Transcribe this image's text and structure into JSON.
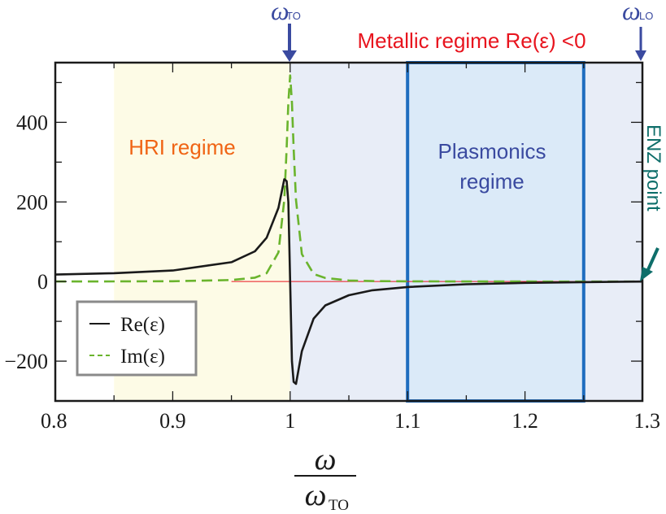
{
  "chart_data": {
    "type": "line",
    "title": "",
    "xlabel": "ω / ω_TO",
    "ylabel": "",
    "xlim": [
      0.8,
      1.3
    ],
    "ylim": [
      -300,
      550
    ],
    "grid": false,
    "legend_position": "lower-left (inside)",
    "x_ticks": [
      "0.8",
      "0.9",
      "1",
      "1.1",
      "1.2",
      "1.3"
    ],
    "y_ticks": [
      "-200",
      "0",
      "200",
      "400"
    ],
    "series": [
      {
        "name": "Re(ε)",
        "style": "solid",
        "color": "#1a1a1a",
        "x": [
          0.8,
          0.85,
          0.9,
          0.95,
          0.97,
          0.98,
          0.99,
          0.995,
          0.997,
          0.9985,
          1.0,
          1.0015,
          1.003,
          1.005,
          1.01,
          1.02,
          1.03,
          1.05,
          1.07,
          1.1,
          1.15,
          1.2,
          1.25,
          1.3
        ],
        "values": [
          17.5,
          20.9,
          27.8,
          48.5,
          76,
          110,
          185,
          257,
          252,
          200,
          0,
          -200,
          -252,
          -257,
          -175,
          -93,
          -60,
          -34.4,
          -22,
          -13.7,
          -6.8,
          -3.4,
          -1.4,
          0
        ]
      },
      {
        "name": "Im(ε)",
        "style": "dashed",
        "color": "#6ab42d",
        "x": [
          0.8,
          0.85,
          0.9,
          0.95,
          0.97,
          0.98,
          0.99,
          0.995,
          0.997,
          0.9985,
          1.0,
          1.0015,
          1.003,
          1.005,
          1.01,
          1.02,
          1.03,
          1.05,
          1.07,
          1.1,
          1.15,
          1.2,
          1.25,
          1.3
        ],
        "values": [
          0.1,
          0.3,
          0.7,
          3.8,
          9.8,
          21,
          73,
          205,
          335,
          450,
          518,
          450,
          335,
          205,
          69,
          19,
          9,
          2.7,
          1.2,
          0.6,
          0.2,
          0.1,
          0.05,
          0
        ]
      }
    ],
    "regions": [
      {
        "name": "HRI regime",
        "x_start": 0.85,
        "x_end": 1.0,
        "fill": "#fdfbe6",
        "label_color": "#f06414"
      },
      {
        "name": "Metallic regime",
        "x_start": 1.0,
        "x_end": 1.3,
        "fill": "#e8edf7"
      },
      {
        "name": "Plasmonics regime",
        "x_start": 1.1,
        "x_end": 1.25,
        "fill": "#dbeaf8",
        "border": "#1f6dbf",
        "label_color": "#3a4aa0"
      }
    ],
    "annotations": [
      {
        "text": "ω_TO",
        "x": 1.0,
        "type": "arrow-down",
        "color": "#3a4aa0"
      },
      {
        "text": "ω_LO",
        "x": 1.3,
        "type": "arrow-down",
        "color": "#3a4aa0"
      },
      {
        "text": "Metallic regime Re(ε) <0",
        "color": "#e8141e"
      },
      {
        "text": "HRI regime",
        "color": "#f06414"
      },
      {
        "text": "Plasmonics regime",
        "color": "#3a4aa0"
      },
      {
        "text": "ENZ point",
        "x": 1.3,
        "y": 0,
        "type": "arrow",
        "color": "#0e6e6a"
      }
    ],
    "zero_line": {
      "x_start": 0.95,
      "x_end": 1.3,
      "color": "#e8141e"
    }
  },
  "labels": {
    "omega_to_symbol": "ω",
    "omega_to_sub": "TO",
    "omega_lo_symbol": "ω",
    "omega_lo_sub": "LO",
    "metallic": "Metallic regime Re(ε) <0",
    "hri": "HRI regime",
    "plasmonics_line1": "Plasmonics",
    "plasmonics_line2": "regime",
    "enz": "ENZ point",
    "xlabel_num": "ω",
    "xlabel_den": "ω",
    "xlabel_den_sub": "TO",
    "legend_re": "Re(ε)",
    "legend_im": "Im(ε)"
  }
}
